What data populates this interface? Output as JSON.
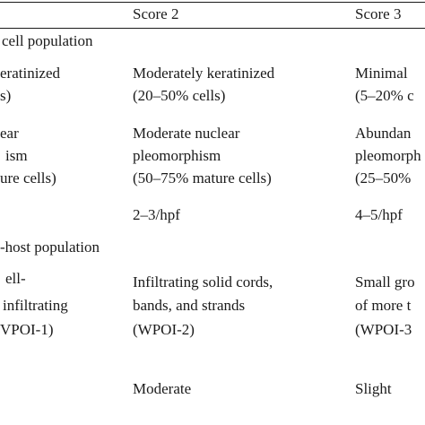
{
  "table": {
    "columns": [
      "Score 2",
      "Score 3"
    ],
    "sections": [
      {
        "title": "cell population",
        "rows": [
          {
            "col1": [
              "eratinized",
              "s)"
            ],
            "col2": [
              "Moderately keratinized",
              "(20–50% cells)"
            ],
            "col3": [
              "Minimal",
              "(5–20% c"
            ]
          },
          {
            "col1": [
              "ear",
              "ism",
              "ure cells)"
            ],
            "col2": [
              "Moderate nuclear",
              "pleomorphism",
              "(50–75% mature cells)"
            ],
            "col3": [
              "Abundan",
              "pleomorph",
              "(25–50%"
            ]
          },
          {
            "col1": [],
            "col2": [
              "2–3/hpf"
            ],
            "col3": [
              "4–5/hpf"
            ]
          }
        ]
      },
      {
        "title": "-host population",
        "rows": [
          {
            "col1": [
              "ell-",
              "infiltrating",
              "VPOI-1)"
            ],
            "col2": [
              "Infiltrating solid cords,",
              "bands, and strands",
              "(WPOI-2)"
            ],
            "col3": [
              "Small gro",
              "of more t",
              "(WPOI-3"
            ]
          },
          {
            "col1": [],
            "col2": [
              "Moderate"
            ],
            "col3": [
              "Slight"
            ]
          }
        ]
      }
    ]
  }
}
